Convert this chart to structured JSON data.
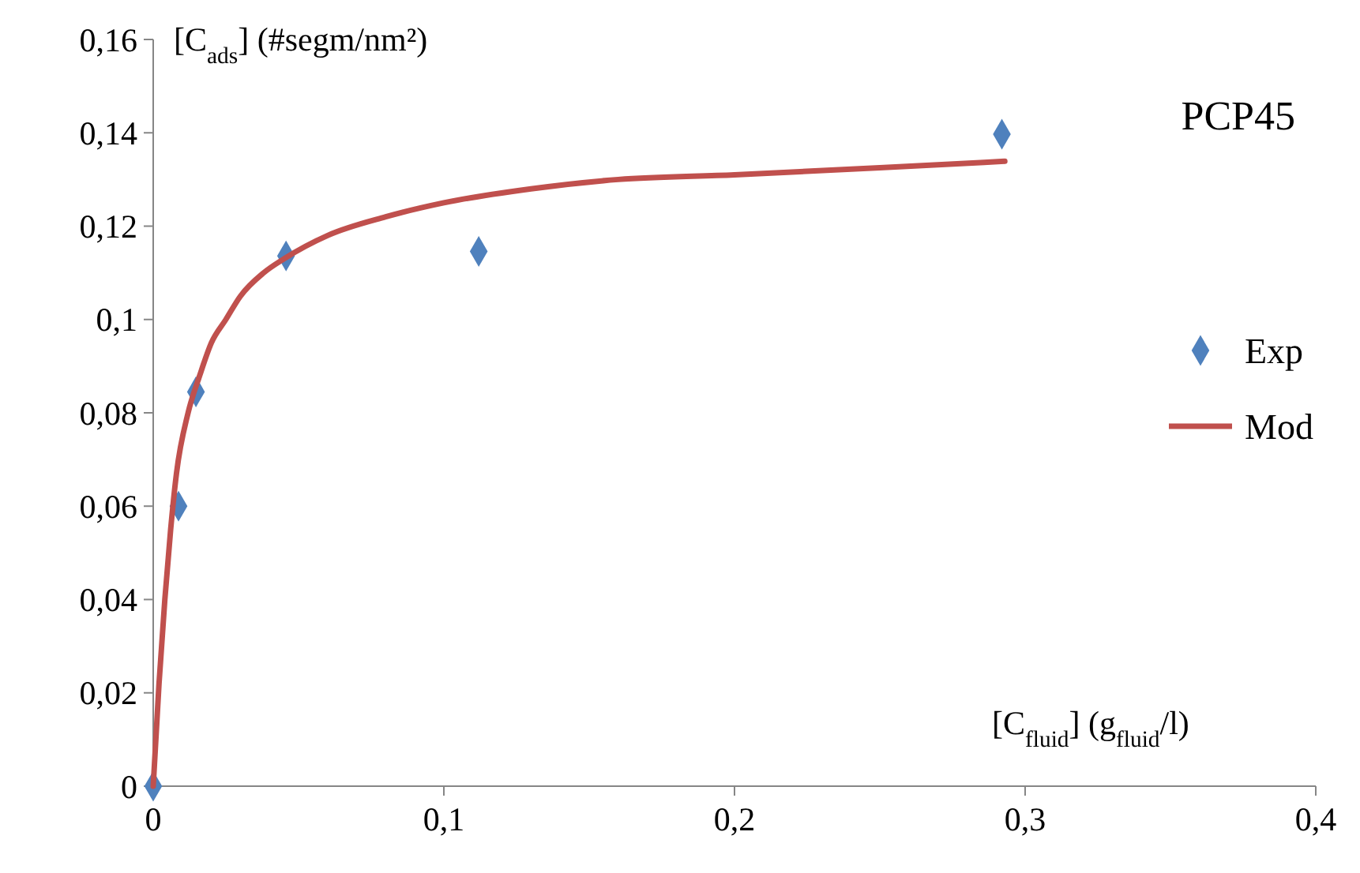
{
  "chart_data": {
    "type": "scatter",
    "title": "PCP45",
    "ylabel": "[C$_{ads}$] (#segm/nm²)",
    "xlabel": "[C$_{fluid}$] (g$_{fluid}$/l)",
    "xlim": [
      0,
      0.4
    ],
    "xticks": [
      0,
      {
        "value": 0.1,
        "label": "0,1"
      },
      {
        "value": 0.2,
        "label": "0,2"
      },
      {
        "value": 0.3,
        "label": "0,3"
      },
      {
        "value": 0.4,
        "label": "0,4"
      }
    ],
    "ylim": [
      0,
      0.16
    ],
    "yticks": [
      0,
      {
        "value": 0.02,
        "label": "0,02"
      },
      {
        "value": 0.04,
        "label": "0,04"
      },
      {
        "value": 0.06,
        "label": "0,06"
      },
      {
        "value": 0.08,
        "label": "0,08"
      },
      {
        "value": 0.1,
        "label": "0,1"
      },
      {
        "value": 0.12,
        "label": "0,12"
      },
      {
        "value": 0.14,
        "label": "0,14"
      },
      {
        "value": 0.16,
        "label": "0,16"
      }
    ],
    "grid": false,
    "legend": "right",
    "series": [
      {
        "name": "Exp",
        "marker": "diamond",
        "color": "#4f81bd",
        "x": [
          0,
          0.0087,
          0.0147,
          0.0457,
          0.112,
          0.292
        ],
        "values": [
          0,
          0.06,
          0.0845,
          0.1136,
          0.1146,
          0.1397
        ]
      },
      {
        "name": "Mod",
        "type": "line",
        "marker": "none",
        "color": "#c0504d",
        "x": [
          0,
          0.002,
          0.004,
          0.006,
          0.008,
          0.012,
          0.016,
          0.02,
          0.025,
          0.03,
          0.038,
          0.045,
          0.06,
          0.08,
          0.1,
          0.13,
          0.16,
          0.2,
          0.25,
          0.293
        ],
        "values": [
          0,
          0.022,
          0.04,
          0.055,
          0.067,
          0.08,
          0.088,
          0.095,
          0.1,
          0.105,
          0.11,
          0.113,
          0.118,
          0.122,
          0.125,
          0.128,
          0.13,
          0.131,
          0.1325,
          0.1339
        ]
      }
    ]
  }
}
